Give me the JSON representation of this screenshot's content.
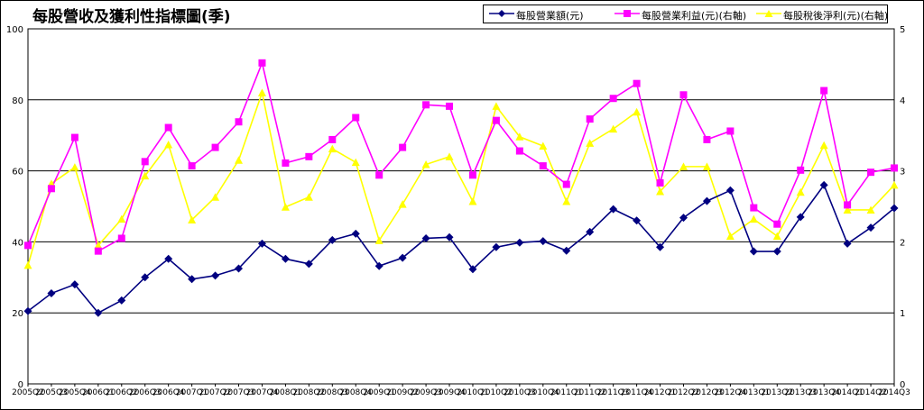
{
  "title": "每股營收及獲利性指標圖(季)",
  "chart_data": {
    "type": "line",
    "title": "每股營收及獲利性指標圖(季)",
    "x": [
      "2005Q2",
      "2005Q3",
      "2005Q4",
      "2006Q1",
      "2006Q2",
      "2006Q3",
      "2006Q4",
      "2007Q1",
      "2007Q2",
      "2007Q3",
      "2007Q4",
      "2008Q1",
      "2008Q2",
      "2008Q3",
      "2008Q4",
      "2009Q1",
      "2009Q2",
      "2009Q3",
      "2009Q4",
      "2010Q1",
      "2010Q2",
      "2010Q3",
      "2010Q4",
      "2011Q1",
      "2011Q2",
      "2011Q3",
      "2011Q4",
      "2012Q1",
      "2012Q2",
      "2012Q3",
      "2012Q4",
      "2013Q1",
      "2013Q2",
      "2013Q3",
      "2013Q4",
      "2014Q1",
      "2014Q2",
      "2014Q3"
    ],
    "ylim_left": [
      0,
      100
    ],
    "left_ticks": [
      "0",
      "20",
      "40",
      "60",
      "80",
      "100"
    ],
    "ylim_right": [
      0,
      5
    ],
    "right_ticks": [
      "0",
      "1",
      "2",
      "3",
      "4",
      "5"
    ],
    "grid": true,
    "legend_position": "top-right",
    "series": [
      {
        "name": "每股營業額(元)",
        "axis": "left",
        "color": "#000080",
        "marker": "diamond",
        "values": [
          20.5,
          25.5,
          28,
          20,
          23.5,
          30,
          35.2,
          29.5,
          30.5,
          32.5,
          39.5,
          35.2,
          33.8,
          40.5,
          42.3,
          33.2,
          35.5,
          41,
          41.3,
          32.3,
          38.5,
          39.8,
          40.2,
          37.5,
          42.8,
          49.2,
          46,
          38.5,
          46.8,
          51.5,
          54.5,
          37.3,
          37.3,
          47,
          56,
          39.5,
          44,
          49.5
        ]
      },
      {
        "name": "每股營業利益(元)(右軸)",
        "axis": "right",
        "color": "#ff00ff",
        "marker": "square",
        "values": [
          1.95,
          2.75,
          3.47,
          1.87,
          2.05,
          3.13,
          3.61,
          3.07,
          3.33,
          3.69,
          4.52,
          3.11,
          3.2,
          3.44,
          3.75,
          2.94,
          3.33,
          3.93,
          3.91,
          2.94,
          3.71,
          3.28,
          3.07,
          2.81,
          3.73,
          4.02,
          4.23,
          2.83,
          4.07,
          3.44,
          3.56,
          2.48,
          2.25,
          3.01,
          4.13,
          2.52,
          2.98,
          3.04
        ]
      },
      {
        "name": "每股稅後淨利(元)(右軸)",
        "axis": "right",
        "color": "#ffff00",
        "marker": "triangle",
        "values": [
          1.67,
          2.82,
          3.05,
          1.95,
          2.32,
          2.93,
          3.37,
          2.31,
          2.63,
          3.15,
          4.1,
          2.49,
          2.63,
          3.31,
          3.12,
          2.02,
          2.53,
          3.09,
          3.2,
          2.57,
          3.91,
          3.48,
          3.35,
          2.57,
          3.39,
          3.59,
          3.83,
          2.71,
          3.06,
          3.06,
          2.08,
          2.32,
          2.08,
          2.7,
          3.36,
          2.45,
          2.45,
          2.8
        ]
      }
    ]
  }
}
